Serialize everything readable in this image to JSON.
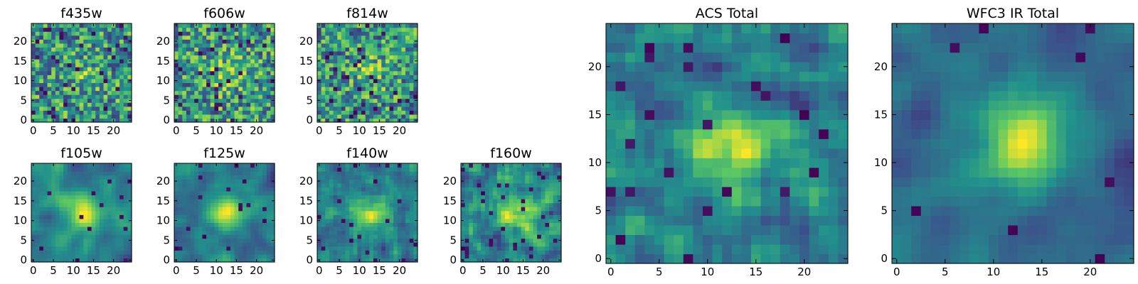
{
  "figure": {
    "colormap": "viridis",
    "grid_size": 25,
    "colormap_stops": [
      "#440154",
      "#3b528b",
      "#21918c",
      "#5ec962",
      "#fde725"
    ]
  },
  "chart_data": [
    {
      "type": "heatmap",
      "title": "f435w",
      "xticks": [
        0,
        5,
        10,
        15,
        20
      ],
      "yticks": [
        0,
        5,
        10,
        15,
        20
      ],
      "xlim": [
        -0.5,
        24.5
      ],
      "ylim": [
        -0.5,
        24.5
      ],
      "seed": 11,
      "smoothness": 0,
      "bright_spot": 0.2,
      "dark_fraction": 0.05
    },
    {
      "type": "heatmap",
      "title": "f606w",
      "xticks": [
        0,
        5,
        10,
        15,
        20
      ],
      "yticks": [
        0,
        5,
        10,
        15,
        20
      ],
      "xlim": [
        -0.5,
        24.5
      ],
      "ylim": [
        -0.5,
        24.5
      ],
      "seed": 23,
      "smoothness": 0,
      "bright_spot": 0.35,
      "dark_fraction": 0.05
    },
    {
      "type": "heatmap",
      "title": "f814w",
      "xticks": [
        0,
        5,
        10,
        15,
        20
      ],
      "yticks": [
        0,
        5,
        10,
        15,
        20
      ],
      "xlim": [
        -0.5,
        24.5
      ],
      "ylim": [
        -0.5,
        24.5
      ],
      "seed": 37,
      "smoothness": 0,
      "bright_spot": 0.3,
      "dark_fraction": 0.05
    },
    {
      "type": "heatmap",
      "title": "f105w",
      "xticks": [
        0,
        5,
        10,
        15,
        20
      ],
      "yticks": [
        0,
        5,
        10,
        15,
        20
      ],
      "xlim": [
        -0.5,
        24.5
      ],
      "ylim": [
        -0.5,
        24.5
      ],
      "seed": 41,
      "smoothness": 2,
      "bright_spot": 0.6,
      "dark_fraction": 0.03
    },
    {
      "type": "heatmap",
      "title": "f125w",
      "xticks": [
        0,
        5,
        10,
        15,
        20
      ],
      "yticks": [
        0,
        5,
        10,
        15,
        20
      ],
      "xlim": [
        -0.5,
        24.5
      ],
      "ylim": [
        -0.5,
        24.5
      ],
      "seed": 53,
      "smoothness": 2,
      "bright_spot": 0.55,
      "dark_fraction": 0.03
    },
    {
      "type": "heatmap",
      "title": "f140w",
      "xticks": [
        0,
        5,
        10,
        15,
        20
      ],
      "yticks": [
        0,
        5,
        10,
        15,
        20
      ],
      "xlim": [
        -0.5,
        24.5
      ],
      "ylim": [
        -0.5,
        24.5
      ],
      "seed": 67,
      "smoothness": 1,
      "bright_spot": 0.5,
      "dark_fraction": 0.04
    },
    {
      "type": "heatmap",
      "title": "f160w",
      "xticks": [
        0,
        5,
        10,
        15,
        20
      ],
      "yticks": [
        0,
        5,
        10,
        15,
        20
      ],
      "xlim": [
        -0.5,
        24.5
      ],
      "ylim": [
        -0.5,
        24.5
      ],
      "seed": 79,
      "smoothness": 1,
      "bright_spot": 0.45,
      "dark_fraction": 0.05
    },
    {
      "type": "heatmap",
      "title": "ACS Total",
      "xticks": [
        0,
        5,
        10,
        15,
        20
      ],
      "yticks": [
        0,
        5,
        10,
        15,
        20
      ],
      "xlim": [
        -0.5,
        24.5
      ],
      "ylim": [
        -0.5,
        24.5
      ],
      "seed": 97,
      "smoothness": 1,
      "bright_spot": 0.55,
      "dark_fraction": 0.03
    },
    {
      "type": "heatmap",
      "title": "WFC3 IR Total",
      "xticks": [
        0,
        5,
        10,
        15,
        20
      ],
      "yticks": [
        0,
        5,
        10,
        15,
        20
      ],
      "xlim": [
        -0.5,
        24.5
      ],
      "ylim": [
        -0.5,
        24.5
      ],
      "seed": 113,
      "smoothness": 2,
      "bright_spot": 0.9,
      "dark_fraction": 0.02
    }
  ]
}
